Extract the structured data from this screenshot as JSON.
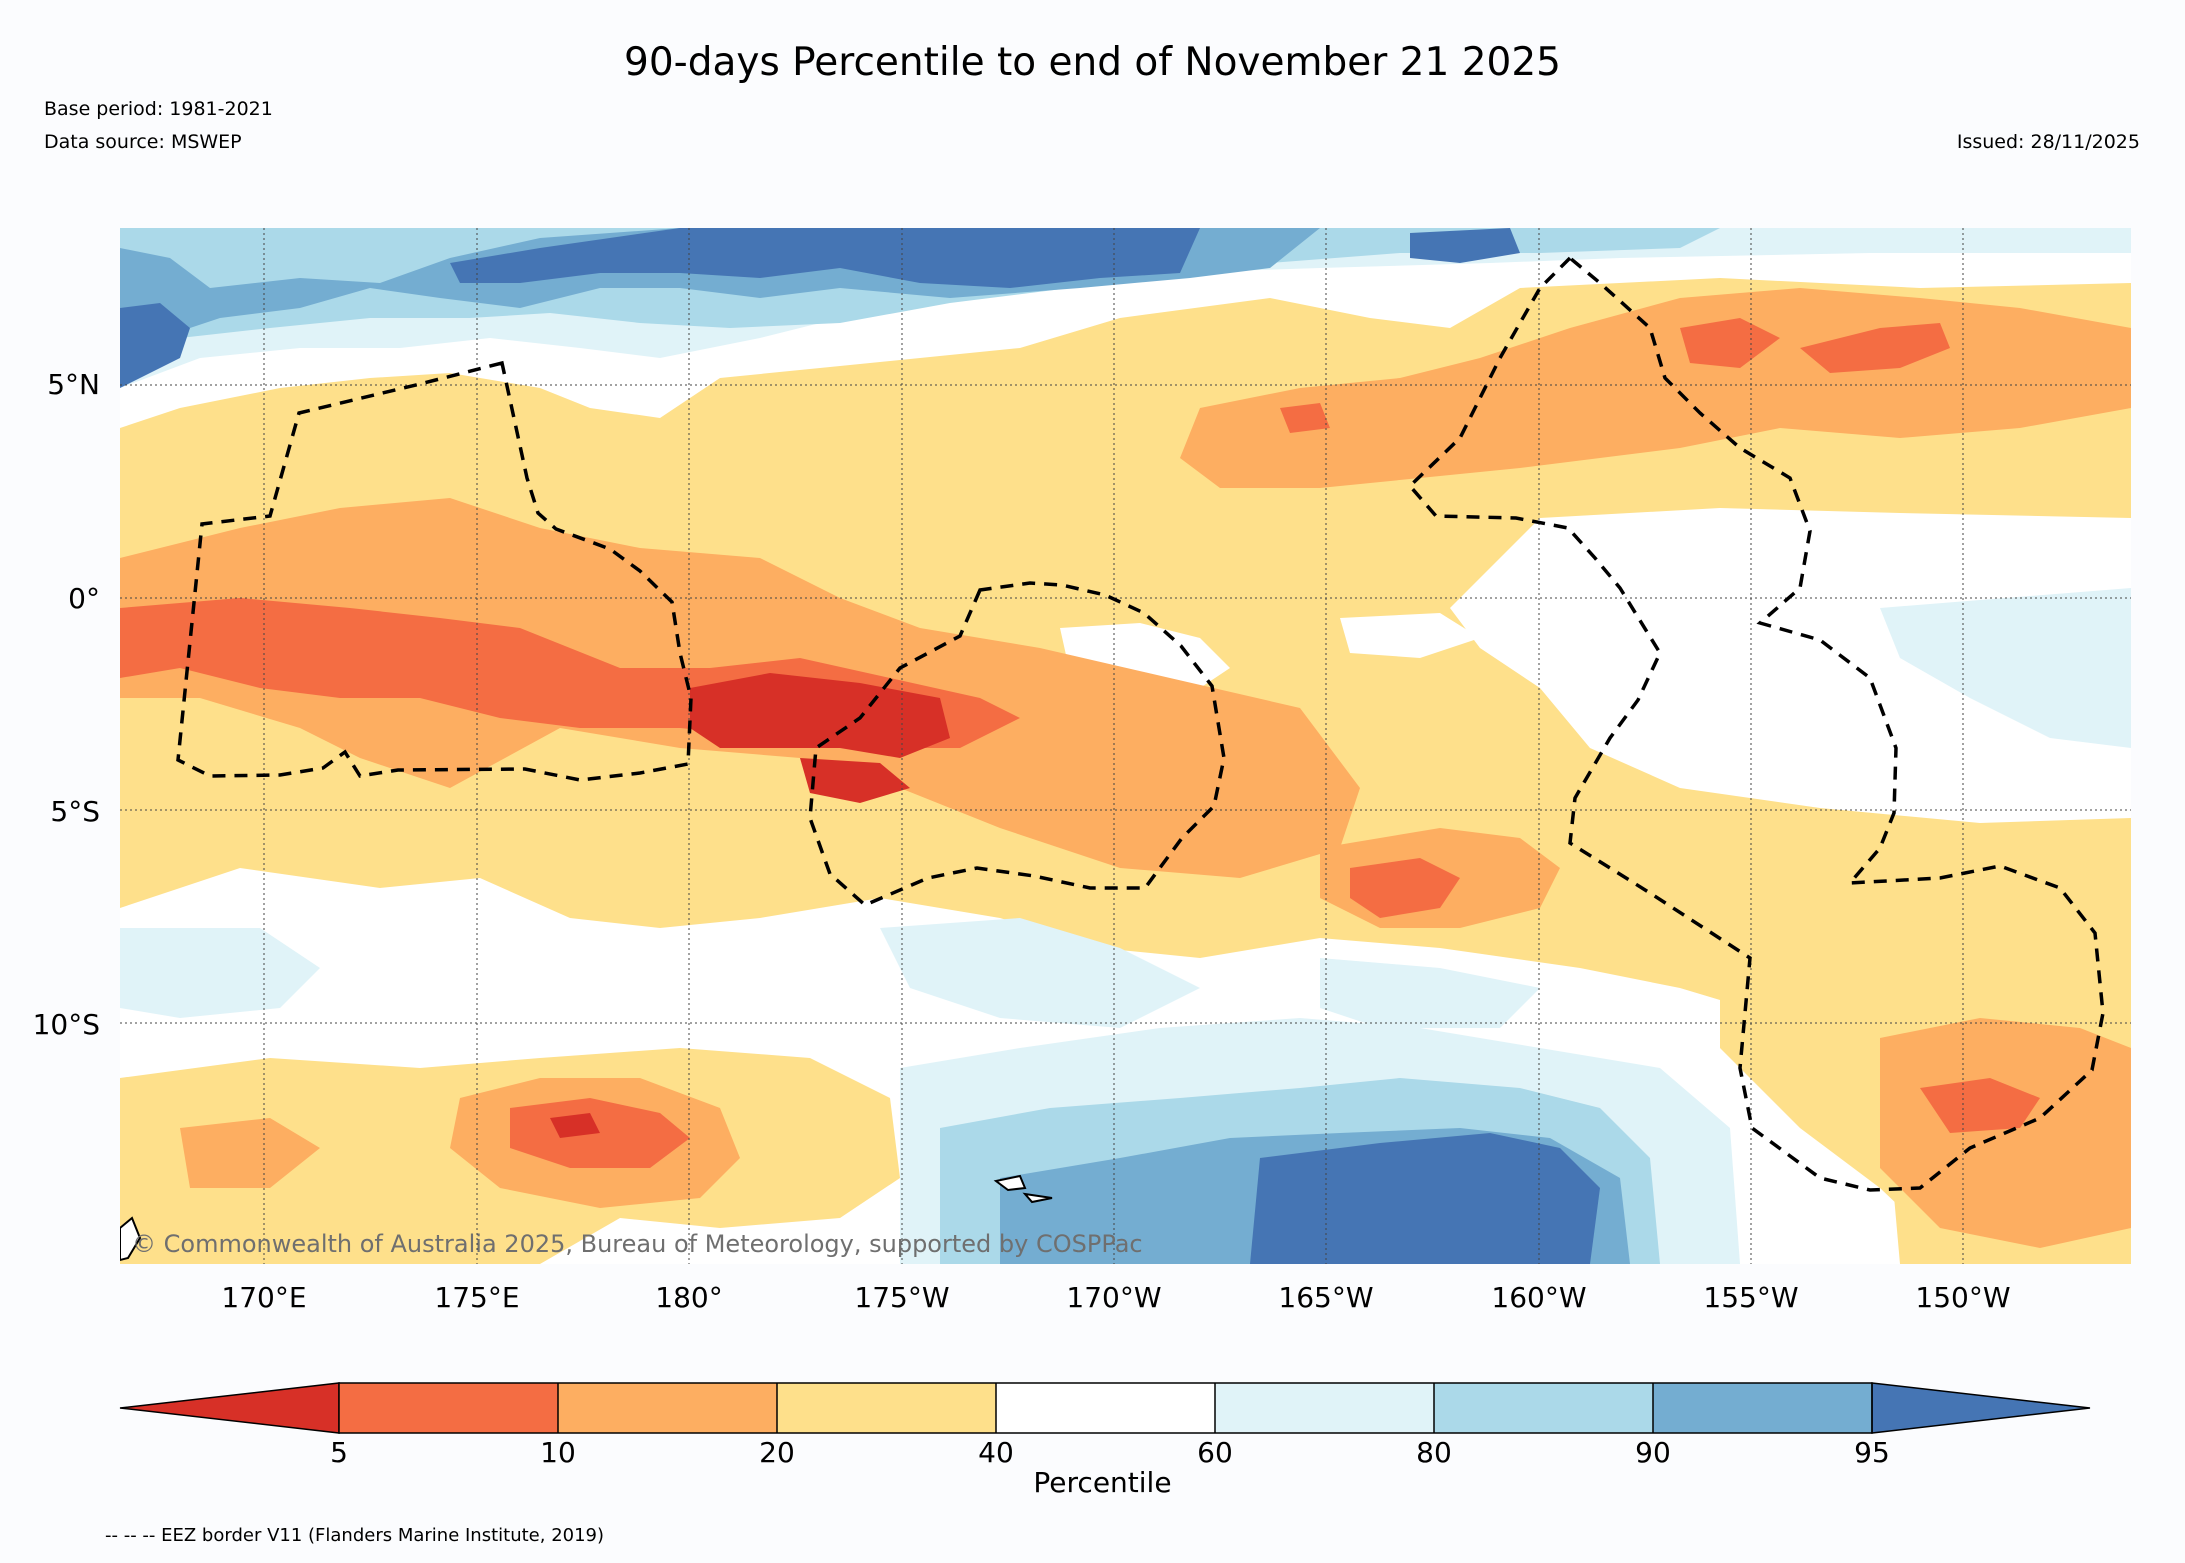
{
  "header": {
    "title": "90-days Percentile to end of November 21 2025",
    "base_period": "Base period: 1981-2021",
    "data_source": "Data source: MSWEP",
    "issued": "Issued: 28/11/2025"
  },
  "map": {
    "latitude_labels": [
      "5°N",
      "0°",
      "5°S",
      "10°S"
    ],
    "longitude_labels": [
      "170°E",
      "175°E",
      "180°",
      "175°W",
      "170°W",
      "165°W",
      "160°W",
      "155°W",
      "150°W"
    ],
    "copyright": "© Commonwealth of Australia 2025, Bureau of Meteorology, supported by COSPPac",
    "eez_note": "-- -- -- EEZ border V11 (Flanders Marine Institute, 2019)"
  },
  "colorbar": {
    "title": "Percentile",
    "tick_labels": [
      "5",
      "10",
      "20",
      "40",
      "60",
      "80",
      "90",
      "95"
    ],
    "colors": [
      "#d73027",
      "#f46d43",
      "#fdae61",
      "#fee08b",
      "#ffffff",
      "#e0f3f8",
      "#abd9e9",
      "#74add1",
      "#4575b4"
    ]
  },
  "palette": {
    "p5": "#d73027",
    "p10": "#f46d43",
    "p20": "#fdae61",
    "p40": "#fee08b",
    "p60": "#ffffff",
    "p80": "#e0f3f8",
    "p90": "#abd9e9",
    "p95": "#74add1",
    "p100": "#4575b4"
  }
}
